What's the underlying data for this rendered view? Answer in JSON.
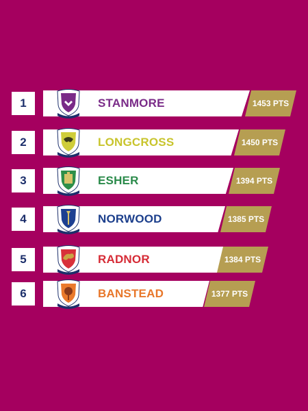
{
  "rows": [
    {
      "rank": "1",
      "team": "STANMORE",
      "points": "1453 PTS",
      "team_color": "#7a2b88",
      "shield_color": "#7a2b88",
      "crest_text": "STANMORE"
    },
    {
      "rank": "2",
      "team": "LONGCROSS",
      "points": "1450 PTS",
      "team_color": "#c8c42c",
      "shield_color": "#cfcd3a",
      "crest_text": "LONGCROSS"
    },
    {
      "rank": "3",
      "team": "ESHER",
      "points": "1394 PTS",
      "team_color": "#2a8a4a",
      "shield_color": "#2e8f49",
      "crest_text": "ESHER"
    },
    {
      "rank": "4",
      "team": "NORWOOD",
      "points": "1385 PTS",
      "team_color": "#1c3f8c",
      "shield_color": "#1d4091",
      "crest_text": "NORWOOD"
    },
    {
      "rank": "5",
      "team": "RADNOR",
      "points": "1384 PTS",
      "team_color": "#d62b36",
      "shield_color": "#d8313a",
      "crest_text": "RADNOR"
    },
    {
      "rank": "6",
      "team": "BANSTEAD",
      "points": "1377 PTS",
      "team_color": "#e8772a",
      "shield_color": "#ea7a2c",
      "crest_text": "BANSTEAD"
    }
  ]
}
